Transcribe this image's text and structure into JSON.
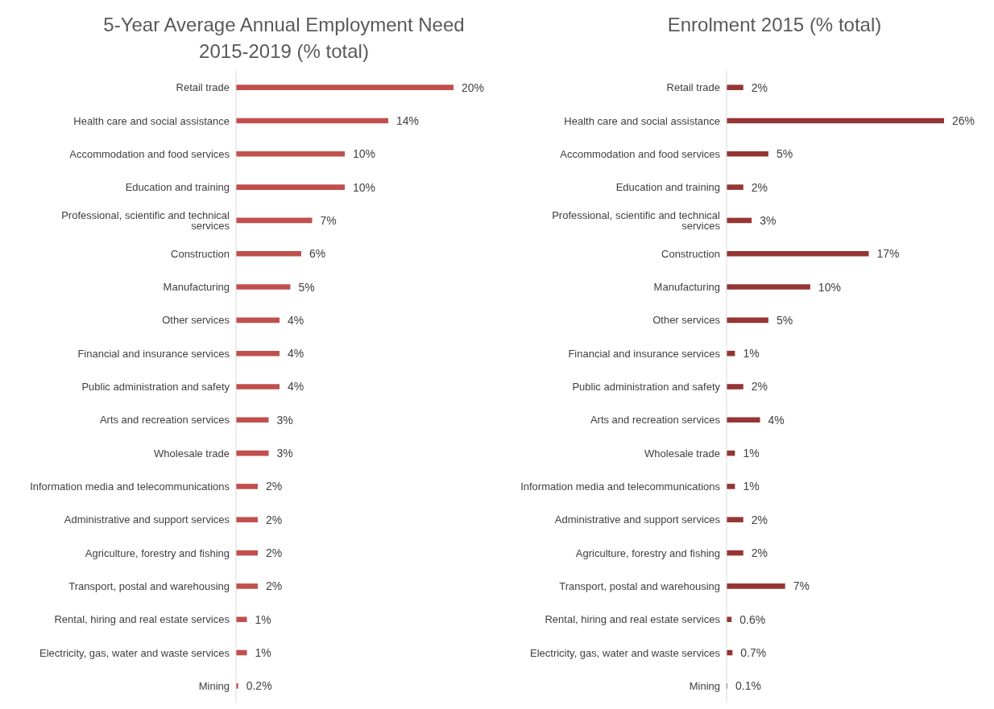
{
  "chart_data": [
    {
      "type": "bar",
      "orientation": "horizontal",
      "title": "5-Year Average Annual Employment Need 2015-2019 (% total)",
      "color": "#c0504d",
      "categories": [
        "Retail trade",
        "Health care and social assistance",
        "Accommodation and food services",
        "Education and training",
        "Professional, scientific and technical services",
        "Construction",
        "Manufacturing",
        "Other services",
        "Financial and insurance services",
        "Public administration and safety",
        "Arts and recreation services",
        "Wholesale trade",
        "Information media and telecommunications",
        "Administrative and support services",
        "Agriculture, forestry and fishing",
        "Transport, postal and warehousing",
        "Rental, hiring and real estate services",
        "Electricity, gas, water and waste services",
        "Mining"
      ],
      "values": [
        20,
        14,
        10,
        10,
        7,
        6,
        5,
        4,
        4,
        4,
        3,
        3,
        2,
        2,
        2,
        2,
        1,
        1,
        0.2
      ],
      "value_labels": [
        "20%",
        "14%",
        "10%",
        "10%",
        "7%",
        "6%",
        "5%",
        "4%",
        "4%",
        "4%",
        "3%",
        "3%",
        "2%",
        "2%",
        "2%",
        "2%",
        "1%",
        "1%",
        "0.2%"
      ]
    },
    {
      "type": "bar",
      "orientation": "horizontal",
      "title": "Enrolment 2015 (% total)",
      "color": "#943634",
      "categories": [
        "Retail trade",
        "Health care and social assistance",
        "Accommodation and food services",
        "Education and training",
        "Professional, scientific and technical services",
        "Construction",
        "Manufacturing",
        "Other services",
        "Financial and insurance services",
        "Public administration and safety",
        "Arts and recreation services",
        "Wholesale trade",
        "Information media and telecommunications",
        "Administrative and support services",
        "Agriculture, forestry and fishing",
        "Transport, postal and warehousing",
        "Rental, hiring and real estate services",
        "Electricity, gas, water and waste services",
        "Mining"
      ],
      "values": [
        2,
        26,
        5,
        2,
        3,
        17,
        10,
        5,
        1,
        2,
        4,
        1,
        1,
        2,
        2,
        7,
        0.6,
        0.7,
        0.1
      ],
      "value_labels": [
        "2%",
        "26%",
        "5%",
        "2%",
        "3%",
        "17%",
        "10%",
        "5%",
        "1%",
        "2%",
        "4%",
        "1%",
        "1%",
        "2%",
        "2%",
        "7%",
        "0.6%",
        "0.7%",
        "0.1%"
      ]
    }
  ]
}
